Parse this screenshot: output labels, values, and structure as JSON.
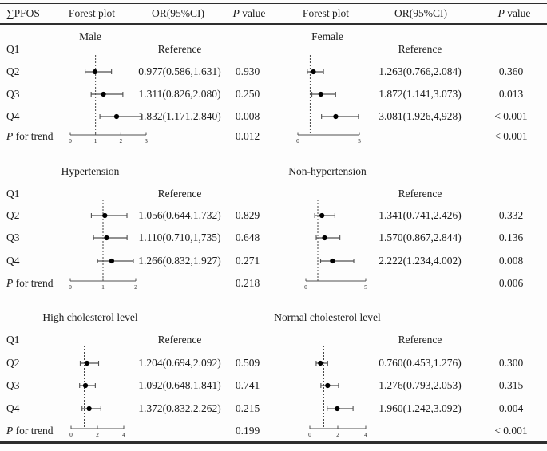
{
  "header": {
    "col_exposure": "∑PFOS",
    "col_forest_left": "Forest plot",
    "col_or_left": "OR(95%CI)",
    "col_p_italic": "P",
    "col_p_rest": " value",
    "col_forest_right": "Forest plot",
    "col_or_right": "OR(95%CI)"
  },
  "trend_label": {
    "italic": "P",
    "rest": " for trend"
  },
  "sections": [
    {
      "left_title": "Male",
      "right_title": "Female",
      "rows": [
        {
          "label": "Q1",
          "or_left": "Reference",
          "or_right": "Reference"
        },
        {
          "label": "Q2",
          "or_left": "0.977(0.586,1.631)",
          "p_left": "0.930",
          "or_right": "1.263(0.766,2.084)",
          "p_right": "0.360"
        },
        {
          "label": "Q3",
          "or_left": "1.311(0.826,2.080)",
          "p_left": "0.250",
          "or_right": "1.872(1.141,3.073)",
          "p_right": "0.013"
        },
        {
          "label": "Q4",
          "or_left": "1.832(1.171,2.840)",
          "p_left": "0.008",
          "or_right": "3.081(1.926,4,928)",
          "p_right": "< 0.001"
        }
      ],
      "trend": {
        "p_left": "0.012",
        "p_right": "< 0.001"
      }
    },
    {
      "left_title": "Hypertension",
      "right_title": "Non-hypertension",
      "rows": [
        {
          "label": "Q1",
          "or_left": "Reference",
          "or_right": "Reference"
        },
        {
          "label": "Q2",
          "or_left": "1.056(0.644,1.732)",
          "p_left": "0.829",
          "or_right": "1.341(0.741,2.426)",
          "p_right": "0.332"
        },
        {
          "label": "Q3",
          "or_left": "1.110(0.710,1,735)",
          "p_left": "0.648",
          "or_right": "1.570(0.867,2.844)",
          "p_right": "0.136"
        },
        {
          "label": "Q4",
          "or_left": "1.266(0.832,1.927)",
          "p_left": "0.271",
          "or_right": "2.222(1.234,4.002)",
          "p_right": "0.008"
        }
      ],
      "trend": {
        "p_left": "0.218",
        "p_right": "0.006"
      }
    },
    {
      "left_title": "High cholesterol level",
      "right_title": "Normal cholesterol level",
      "rows": [
        {
          "label": "Q1",
          "or_left": "Reference",
          "or_right": "Reference"
        },
        {
          "label": "Q2",
          "or_left": "1.204(0.694,2.092)",
          "p_left": "0.509",
          "or_right": "0.760(0.453,1.276)",
          "p_right": "0.300"
        },
        {
          "label": "Q3",
          "or_left": "1.092(0.648,1.841)",
          "p_left": "0.741",
          "or_right": "1.276(0.793,2.053)",
          "p_right": "0.315"
        },
        {
          "label": "Q4",
          "or_left": "1.372(0.832,2.262)",
          "p_left": "0.215",
          "or_right": "1.960(1.242,3.092)",
          "p_right": "0.004"
        }
      ],
      "trend": {
        "p_left": "0.199",
        "p_right": "< 0.001"
      }
    }
  ],
  "chart_data": [
    {
      "type": "forest",
      "section": 0,
      "side": "left",
      "group": "Male",
      "ref_line": 1,
      "axis": {
        "min": 0,
        "max": 3,
        "ticks": [
          0,
          1,
          2,
          3
        ]
      },
      "points": [
        {
          "label": "Q2",
          "or": 0.977,
          "ci": [
            0.586,
            1.631
          ]
        },
        {
          "label": "Q3",
          "or": 1.311,
          "ci": [
            0.826,
            2.08
          ]
        },
        {
          "label": "Q4",
          "or": 1.832,
          "ci": [
            1.171,
            2.84
          ]
        }
      ]
    },
    {
      "type": "forest",
      "section": 0,
      "side": "right",
      "group": "Female",
      "ref_line": 1,
      "axis": {
        "min": 0,
        "max": 5,
        "ticks": [
          0,
          5
        ]
      },
      "points": [
        {
          "label": "Q2",
          "or": 1.263,
          "ci": [
            0.766,
            2.084
          ]
        },
        {
          "label": "Q3",
          "or": 1.872,
          "ci": [
            1.141,
            3.073
          ]
        },
        {
          "label": "Q4",
          "or": 3.081,
          "ci": [
            1.926,
            4.928
          ]
        }
      ]
    },
    {
      "type": "forest",
      "section": 1,
      "side": "left",
      "group": "Hypertension",
      "ref_line": 1,
      "axis": {
        "min": 0,
        "max": 2,
        "ticks": [
          0,
          1,
          2
        ]
      },
      "points": [
        {
          "label": "Q2",
          "or": 1.056,
          "ci": [
            0.644,
            1.732
          ]
        },
        {
          "label": "Q3",
          "or": 1.11,
          "ci": [
            0.71,
            1.735
          ]
        },
        {
          "label": "Q4",
          "or": 1.266,
          "ci": [
            0.832,
            1.927
          ]
        }
      ]
    },
    {
      "type": "forest",
      "section": 1,
      "side": "right",
      "group": "Non-hypertension",
      "ref_line": 1,
      "axis": {
        "min": 0,
        "max": 5,
        "ticks": [
          0,
          5
        ]
      },
      "points": [
        {
          "label": "Q2",
          "or": 1.341,
          "ci": [
            0.741,
            2.426
          ]
        },
        {
          "label": "Q3",
          "or": 1.57,
          "ci": [
            0.867,
            2.844
          ]
        },
        {
          "label": "Q4",
          "or": 2.222,
          "ci": [
            1.234,
            4.002
          ]
        }
      ]
    },
    {
      "type": "forest",
      "section": 2,
      "side": "left",
      "group": "High cholesterol level",
      "ref_line": 1,
      "axis": {
        "min": 0,
        "max": 4,
        "ticks": [
          0,
          2,
          4
        ]
      },
      "points": [
        {
          "label": "Q2",
          "or": 1.204,
          "ci": [
            0.694,
            2.092
          ]
        },
        {
          "label": "Q3",
          "or": 1.092,
          "ci": [
            0.648,
            1.841
          ]
        },
        {
          "label": "Q4",
          "or": 1.372,
          "ci": [
            0.832,
            2.262
          ]
        }
      ]
    },
    {
      "type": "forest",
      "section": 2,
      "side": "right",
      "group": "Normal cholesterol level",
      "ref_line": 1,
      "axis": {
        "min": 0,
        "max": 4,
        "ticks": [
          0,
          2,
          4
        ]
      },
      "points": [
        {
          "label": "Q2",
          "or": 0.76,
          "ci": [
            0.453,
            1.276
          ]
        },
        {
          "label": "Q3",
          "or": 1.276,
          "ci": [
            0.793,
            2.053
          ]
        },
        {
          "label": "Q4",
          "or": 1.96,
          "ci": [
            1.242,
            3.092
          ]
        }
      ]
    }
  ],
  "colors": {
    "text": "#1c1c1c",
    "rule": "#2e2e2e",
    "ci_line": "#4f4f4f",
    "marker": "#000000",
    "ref_dash": "#333333"
  }
}
